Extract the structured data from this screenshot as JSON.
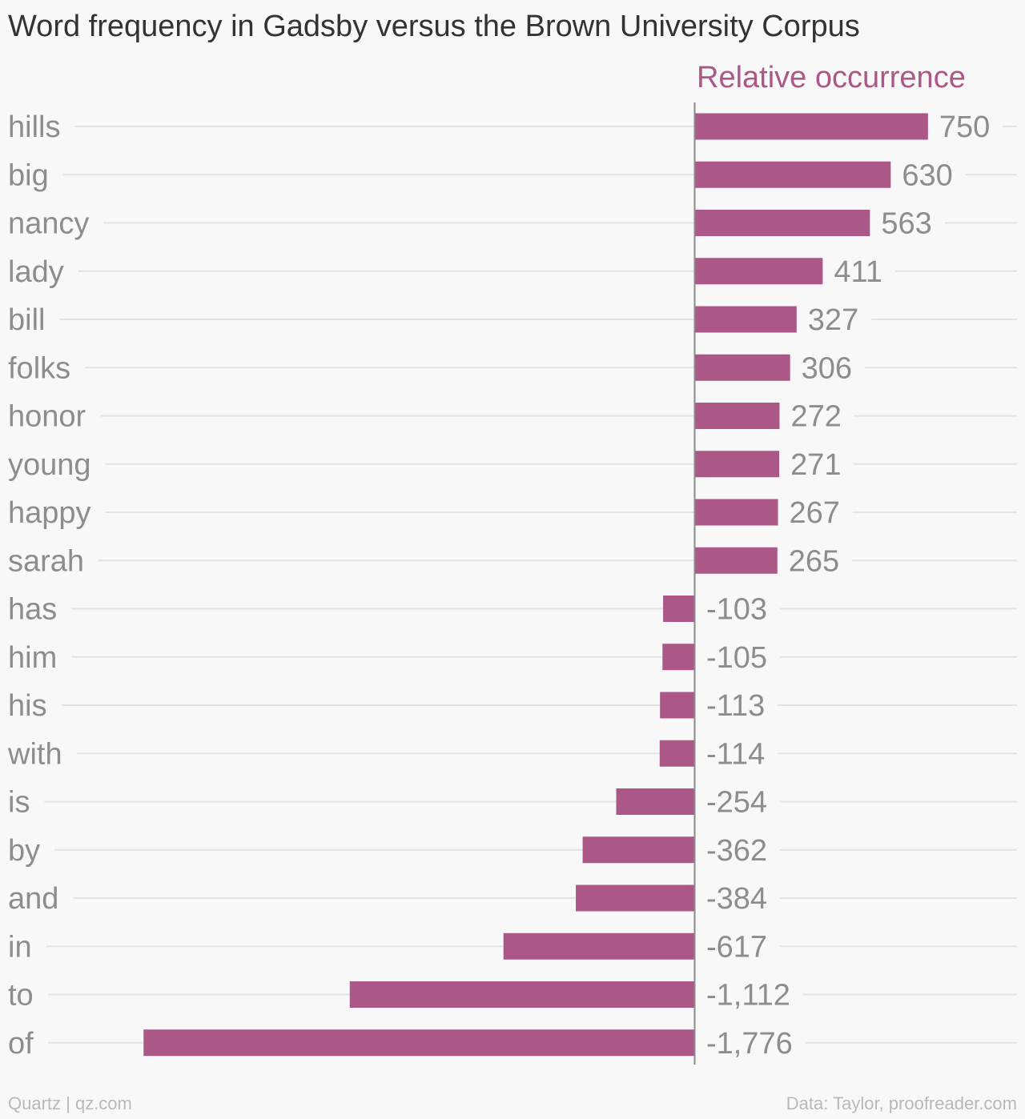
{
  "title": "Word frequency in Gadsby versus the Brown University Corpus",
  "footer": {
    "source_left": "Quartz | qz.com",
    "source_right": "Data: Taylor, proofreader.com"
  },
  "colors": {
    "bar": "#ab5787",
    "series_label": "#ab5787",
    "category_label": "#8d8d8d",
    "value_label": "#8d8d8d",
    "gridline": "#e3e3e3",
    "zero_line": "#8a8a8a"
  },
  "chart_data": {
    "type": "bar",
    "orientation": "horizontal",
    "title": "Word frequency in Gadsby versus the Brown University Corpus",
    "categories": [
      "hills",
      "big",
      "nancy",
      "lady",
      "bill",
      "folks",
      "honor",
      "young",
      "happy",
      "sarah",
      "has",
      "him",
      "his",
      "with",
      "is",
      "by",
      "and",
      "in",
      "to",
      "of"
    ],
    "series": [
      {
        "name": "Relative occurrence",
        "values": [
          750,
          630,
          563,
          411,
          327,
          306,
          272,
          271,
          267,
          265,
          -103,
          -105,
          -113,
          -114,
          -254,
          -362,
          -384,
          -617,
          -1112,
          -1776
        ],
        "labels": [
          "750",
          "630",
          "563",
          "411",
          "327",
          "306",
          "272",
          "271",
          "267",
          "265",
          "-103",
          "-105",
          "-113",
          "-114",
          "-254",
          "-362",
          "-384",
          "-617",
          "-1,112",
          "-1,776"
        ]
      }
    ],
    "xlim": [
      -1776,
      750
    ],
    "grid": true,
    "legend": "top-right"
  }
}
